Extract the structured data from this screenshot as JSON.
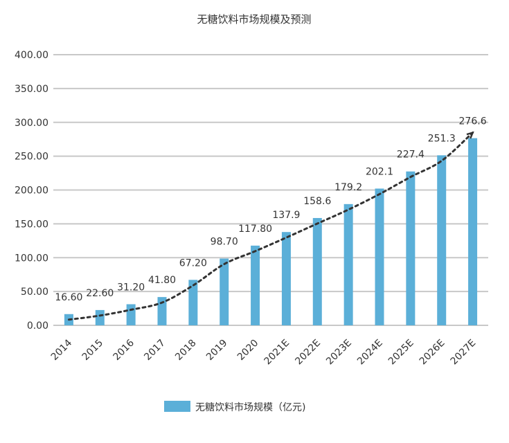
{
  "chart_data": {
    "type": "bar",
    "title": "无糖饮料市场规模及预测",
    "categories": [
      "2014",
      "2015",
      "2016",
      "2017",
      "2018",
      "2019",
      "2020",
      "2021E",
      "2022E",
      "2023E",
      "2024E",
      "2025E",
      "2026E",
      "2027E"
    ],
    "series": [
      {
        "name": "无糖饮料市场规模（亿元)",
        "values": [
          16.6,
          22.6,
          31.2,
          41.8,
          67.2,
          98.7,
          117.8,
          137.9,
          158.6,
          179.2,
          202.1,
          227.4,
          251.3,
          276.6
        ],
        "color": "#5bafd8"
      }
    ],
    "data_labels": [
      "16.60",
      "22.60",
      "31.20",
      "41.80",
      "67.20",
      "98.70",
      "117.80",
      "137.9",
      "158.6",
      "179.2",
      "202.1",
      "227.4",
      "251.3",
      "276.6"
    ],
    "y_ticks": [
      "0.00",
      "50.00",
      "100.00",
      "150.00",
      "200.00",
      "250.00",
      "300.00",
      "350.00",
      "400.00"
    ],
    "ylim": [
      0,
      400
    ],
    "grid": true,
    "trendline": {
      "style": "dotted",
      "color": "#333333"
    },
    "legend_position": "bottom-center"
  }
}
